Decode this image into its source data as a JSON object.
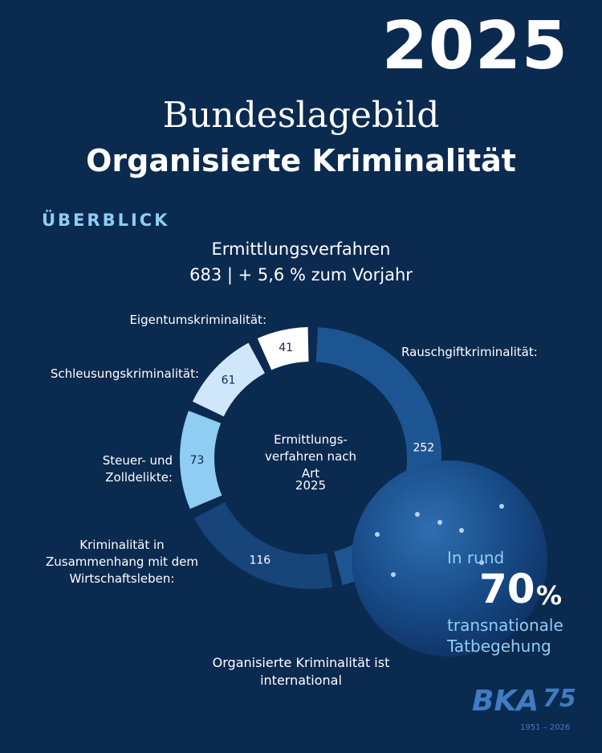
{
  "year": "2025",
  "header": {
    "title_line1": "Bundeslagebild",
    "title_line2": "Organisierte Kriminalität"
  },
  "section": "ÜBERBLICK",
  "summary": {
    "heading": "Ermittlungsverfahren",
    "detail": "683 | + 5,6 % zum Vorjahr"
  },
  "chart_data": {
    "type": "donut",
    "center_label": "Ermittlungs-verfahren nach Art",
    "center_year": "2025",
    "categories": [
      "Rauschgiftkriminalität:",
      "Kriminalität in Zusammenhang mit dem Wirtschaftsleben:",
      "Steuer- und Zolldelikte:",
      "Schleusungskriminalität:",
      "Eigentumskriminalität:"
    ],
    "values": [
      252,
      116,
      73,
      61,
      41
    ],
    "colors": [
      "#1d5592",
      "#174479",
      "#8fcdf3",
      "#cfe7f8",
      "#ffffff"
    ]
  },
  "globe": {
    "intro": "In rund",
    "number": "70",
    "unit": "%",
    "line1": "transnationale",
    "line2": "Tatbegehung"
  },
  "footer": {
    "text": "Organisierte Kriminalität ist international"
  },
  "logo": {
    "name": "BKA",
    "number": "75",
    "years": "1951 – 2026"
  }
}
